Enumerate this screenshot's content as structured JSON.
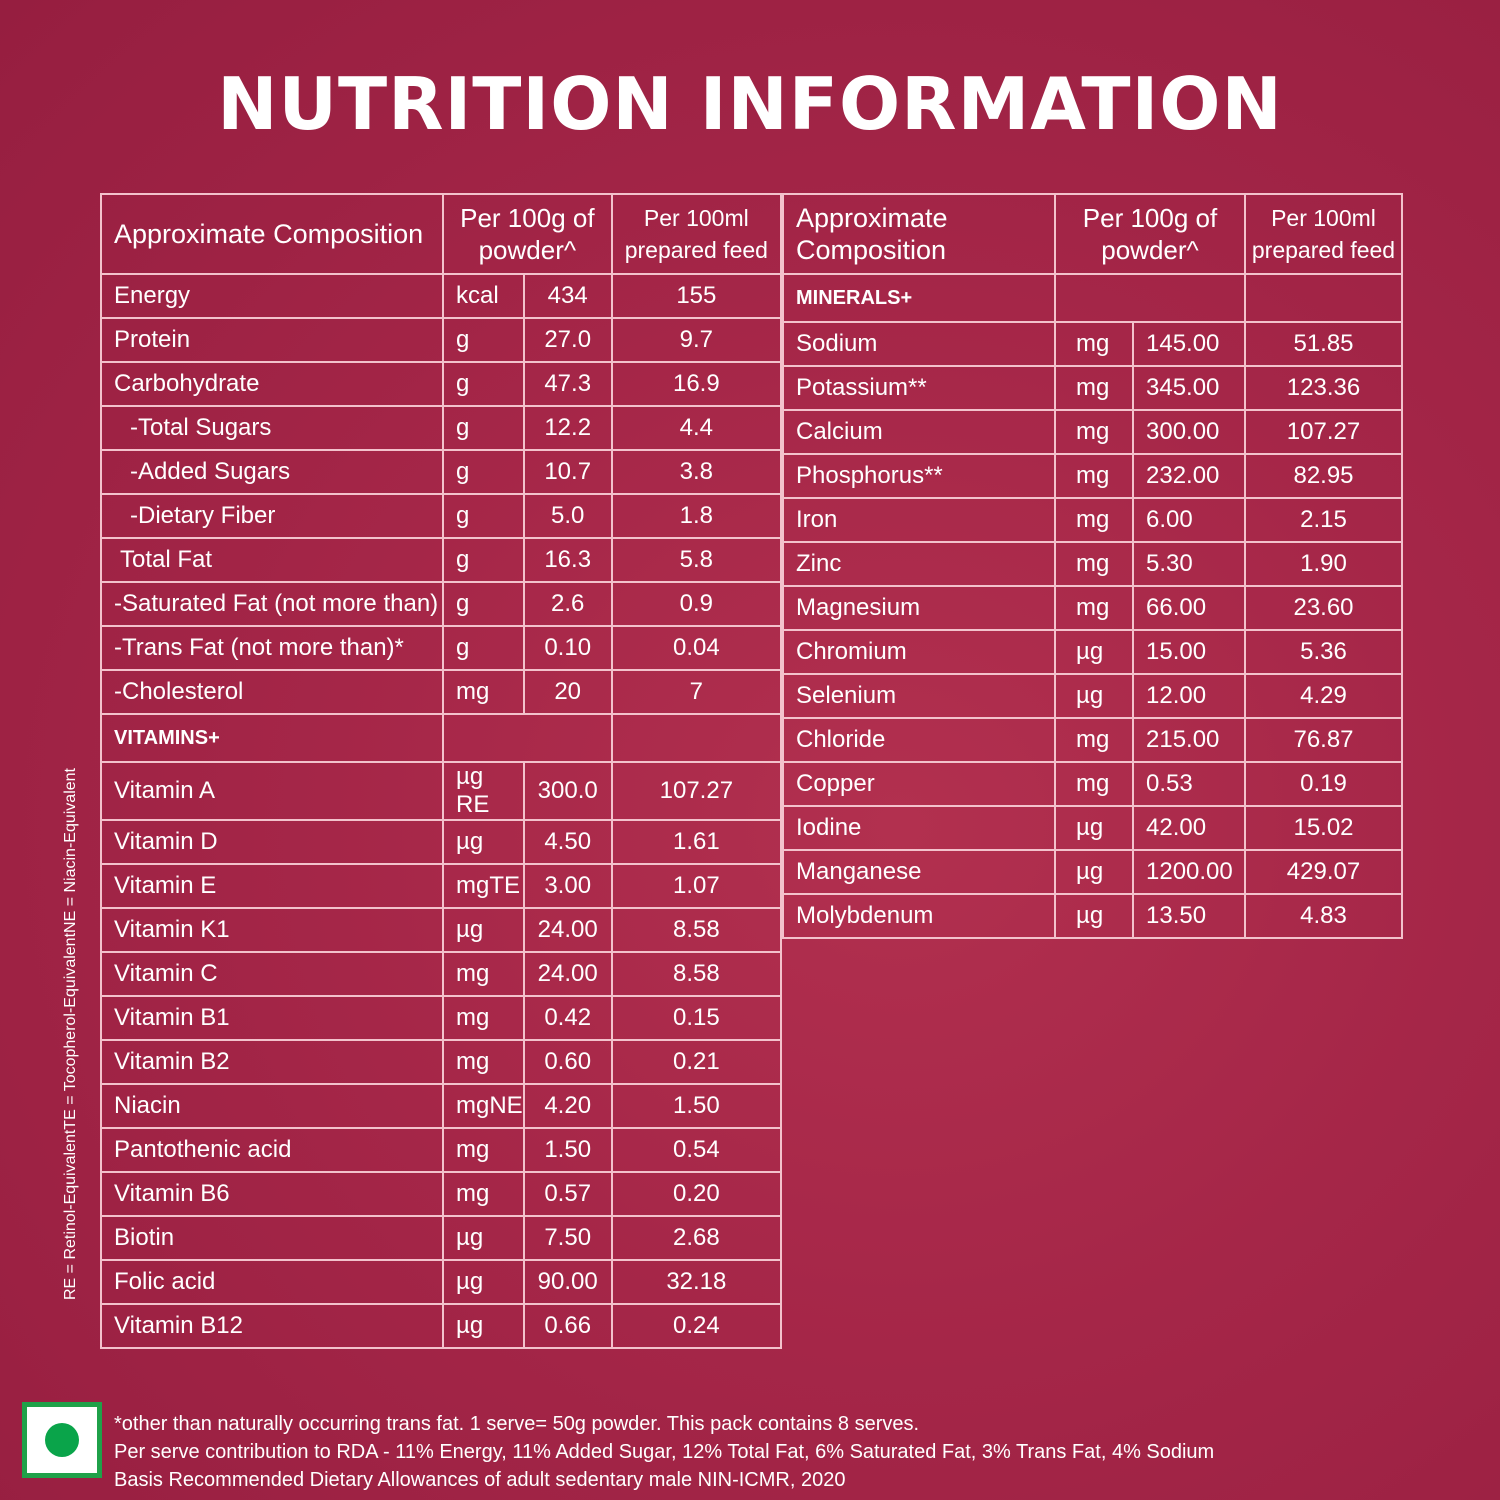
{
  "title": "NUTRITION INFORMATION",
  "colors": {
    "background": "#a52648",
    "border": "#f3c2cc",
    "text": "#ffffff",
    "veg_green": "#1fa149"
  },
  "headers": {
    "composition": "Approximate Composition",
    "per_100g": "Per 100g of powder^",
    "per_100ml": "Per 100ml prepared feed"
  },
  "left_table": {
    "rows": [
      {
        "name": "Energy",
        "unit": "kcal",
        "per_100g": "434",
        "per_100ml": "155"
      },
      {
        "name": "Protein",
        "unit": "g",
        "per_100g": "27.0",
        "per_100ml": "9.7"
      },
      {
        "name": "Carbohydrate",
        "unit": "g",
        "per_100g": "47.3",
        "per_100ml": "16.9"
      },
      {
        "name": "-Total Sugars",
        "unit": "g",
        "per_100g": "12.2",
        "per_100ml": "4.4"
      },
      {
        "name": "-Added Sugars",
        "unit": "g",
        "per_100g": "10.7",
        "per_100ml": "3.8"
      },
      {
        "name": "-Dietary Fiber",
        "unit": "g",
        "per_100g": "5.0",
        "per_100ml": "1.8"
      },
      {
        "name": "Total Fat",
        "unit": "g",
        "per_100g": "16.3",
        "per_100ml": "5.8"
      },
      {
        "name": "-Saturated Fat (not more than)",
        "unit": "g",
        "per_100g": "2.6",
        "per_100ml": "0.9"
      },
      {
        "name": "-Trans Fat (not more than)*",
        "unit": "g",
        "per_100g": "0.10",
        "per_100ml": "0.04"
      },
      {
        "name": "-Cholesterol",
        "unit": "mg",
        "per_100g": "20",
        "per_100ml": "7"
      }
    ],
    "vitamins_section": "VITAMINS+",
    "vitamins": [
      {
        "name": "Vitamin A",
        "unit": "µg RE",
        "per_100g": "300.0",
        "per_100ml": "107.27"
      },
      {
        "name": "Vitamin D",
        "unit": "µg",
        "per_100g": "4.50",
        "per_100ml": "1.61"
      },
      {
        "name": "Vitamin E",
        "unit": "mgTE",
        "per_100g": "3.00",
        "per_100ml": "1.07"
      },
      {
        "name": "Vitamin K1",
        "unit": "µg",
        "per_100g": "24.00",
        "per_100ml": "8.58"
      },
      {
        "name": "Vitamin C",
        "unit": "mg",
        "per_100g": "24.00",
        "per_100ml": "8.58"
      },
      {
        "name": "Vitamin B1",
        "unit": "mg",
        "per_100g": "0.42",
        "per_100ml": "0.15"
      },
      {
        "name": "Vitamin B2",
        "unit": "mg",
        "per_100g": "0.60",
        "per_100ml": "0.21"
      },
      {
        "name": "Niacin",
        "unit": "mgNE",
        "per_100g": "4.20",
        "per_100ml": "1.50"
      },
      {
        "name": "Pantothenic acid",
        "unit": "mg",
        "per_100g": "1.50",
        "per_100ml": "0.54"
      },
      {
        "name": "Vitamin B6",
        "unit": "mg",
        "per_100g": "0.57",
        "per_100ml": "0.20"
      },
      {
        "name": "Biotin",
        "unit": "µg",
        "per_100g": "7.50",
        "per_100ml": "2.68"
      },
      {
        "name": "Folic acid",
        "unit": "µg",
        "per_100g": "90.00",
        "per_100ml": "32.18"
      },
      {
        "name": "Vitamin B12",
        "unit": "µg",
        "per_100g": "0.66",
        "per_100ml": "0.24"
      }
    ]
  },
  "right_table": {
    "minerals_section": "MINERALS+",
    "minerals": [
      {
        "name": "Sodium",
        "unit": "mg",
        "per_100g": "145.00",
        "per_100ml": "51.85"
      },
      {
        "name": "Potassium**",
        "unit": "mg",
        "per_100g": "345.00",
        "per_100ml": "123.36"
      },
      {
        "name": "Calcium",
        "unit": "mg",
        "per_100g": "300.00",
        "per_100ml": "107.27"
      },
      {
        "name": "Phosphorus**",
        "unit": "mg",
        "per_100g": "232.00",
        "per_100ml": "82.95"
      },
      {
        "name": "Iron",
        "unit": "mg",
        "per_100g": "6.00",
        "per_100ml": "2.15"
      },
      {
        "name": "Zinc",
        "unit": "mg",
        "per_100g": "5.30",
        "per_100ml": "1.90"
      },
      {
        "name": "Magnesium",
        "unit": "mg",
        "per_100g": "66.00",
        "per_100ml": "23.60"
      },
      {
        "name": "Chromium",
        "unit": "µg",
        "per_100g": "15.00",
        "per_100ml": "5.36"
      },
      {
        "name": "Selenium",
        "unit": "µg",
        "per_100g": "12.00",
        "per_100ml": "4.29"
      },
      {
        "name": "Chloride",
        "unit": "mg",
        "per_100g": "215.00",
        "per_100ml": "76.87"
      },
      {
        "name": "Copper",
        "unit": "mg",
        "per_100g": "0.53",
        "per_100ml": "0.19"
      },
      {
        "name": "Iodine",
        "unit": "µg",
        "per_100g": "42.00",
        "per_100ml": "15.02"
      },
      {
        "name": "Manganese",
        "unit": "µg",
        "per_100g": "1200.00",
        "per_100ml": "429.07"
      },
      {
        "name": "Molybdenum",
        "unit": "µg",
        "per_100g": "13.50",
        "per_100ml": "4.83"
      }
    ]
  },
  "side_notes": [
    "RE = Retinol-Equivalent",
    "TE = Tocopherol-Equivalent",
    "NE = Niacin-Equivalent"
  ],
  "footnotes": [
    "*other than naturally occurring trans fat. 1 serve= 50g powder. This pack contains 8 serves.",
    "Per serve contribution to RDA - 11% Energy, 11% Added Sugar, 12% Total Fat, 6% Saturated Fat, 3% Trans Fat, 4% Sodium",
    "Basis Recommended Dietary Allowances of adult sedentary male NIN-ICMR, 2020"
  ]
}
